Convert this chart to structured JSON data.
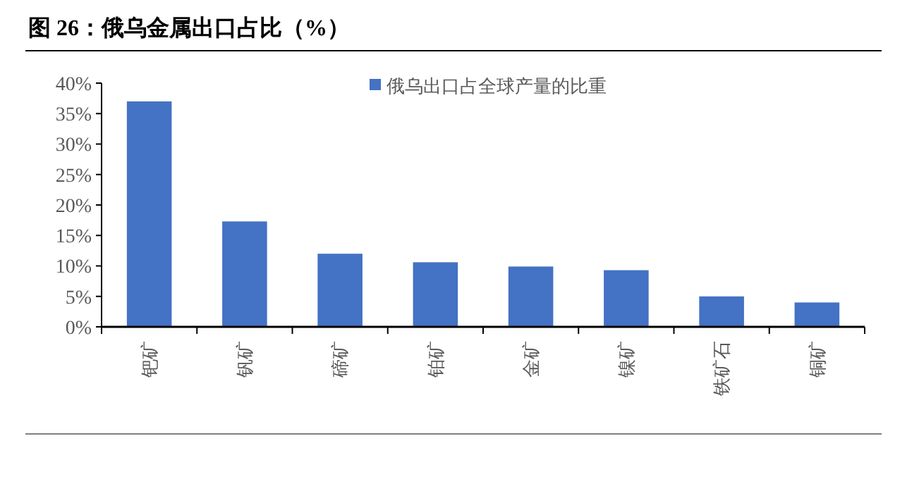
{
  "chart_data": {
    "type": "bar",
    "title": "图 26：俄乌金属出口占比（%）",
    "categories": [
      "钯矿",
      "钒矿",
      "碲矿",
      "铂矿",
      "金矿",
      "镍矿",
      "铁矿石",
      "铜矿"
    ],
    "series": [
      {
        "name": "俄乌出口占全球产量的比重",
        "color": "#4472c4",
        "values": [
          37,
          17.3,
          12,
          10.6,
          9.9,
          9.3,
          5,
          4
        ]
      }
    ],
    "ylim": [
      0,
      40
    ],
    "yticks": [
      {
        "value": 0,
        "label": "0%"
      },
      {
        "value": 5,
        "label": "5%"
      },
      {
        "value": 10,
        "label": "10%"
      },
      {
        "value": 15,
        "label": "15%"
      },
      {
        "value": 20,
        "label": "20%"
      },
      {
        "value": 25,
        "label": "25%"
      },
      {
        "value": 30,
        "label": "30%"
      },
      {
        "value": 35,
        "label": "35%"
      },
      {
        "value": 40,
        "label": "40%"
      }
    ],
    "grid": false,
    "legend": "top"
  }
}
